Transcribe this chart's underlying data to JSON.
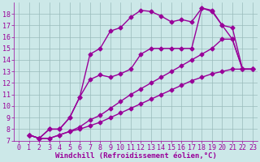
{
  "xlabel": "Windchill (Refroidissement éolien,°C)",
  "bg_color": "#cce8e8",
  "line_color": "#990099",
  "series": [
    {
      "x": [
        1,
        2,
        3,
        4,
        5,
        6,
        7,
        8,
        9,
        10,
        11,
        12,
        13,
        14,
        15,
        16,
        17,
        18,
        19,
        20,
        21,
        22,
        23
      ],
      "y": [
        7.5,
        7.2,
        7.2,
        7.5,
        7.8,
        8.0,
        8.3,
        8.6,
        9.0,
        9.4,
        9.8,
        10.2,
        10.6,
        11.0,
        11.4,
        11.8,
        12.2,
        12.5,
        12.8,
        13.0,
        13.2,
        13.2,
        13.2
      ]
    },
    {
      "x": [
        1,
        2,
        3,
        4,
        5,
        6,
        7,
        8,
        9,
        10,
        11,
        12,
        13,
        14,
        15,
        16,
        17,
        18,
        19,
        20,
        21,
        22,
        23
      ],
      "y": [
        7.5,
        7.2,
        7.2,
        7.5,
        7.8,
        8.2,
        8.8,
        9.2,
        9.8,
        10.4,
        11.0,
        11.5,
        12.0,
        12.5,
        13.0,
        13.5,
        14.0,
        14.5,
        15.0,
        15.8,
        15.8,
        13.2,
        13.2
      ]
    },
    {
      "x": [
        1,
        2,
        3,
        4,
        5,
        6,
        7,
        8,
        9,
        10,
        11,
        12,
        13,
        14,
        15,
        16,
        17,
        18,
        19,
        20,
        21,
        22,
        23
      ],
      "y": [
        7.5,
        7.2,
        8.0,
        8.0,
        9.0,
        10.8,
        12.3,
        12.7,
        12.5,
        12.8,
        13.2,
        14.5,
        15.0,
        15.0,
        15.0,
        15.0,
        15.0,
        18.5,
        18.3,
        17.0,
        15.8,
        13.2,
        13.2
      ]
    },
    {
      "x": [
        1,
        2,
        3,
        4,
        5,
        6,
        7,
        8,
        9,
        10,
        11,
        12,
        13,
        14,
        15,
        16,
        17,
        18,
        19,
        20,
        21,
        22,
        23
      ],
      "y": [
        7.5,
        7.2,
        8.0,
        8.0,
        9.0,
        10.8,
        14.5,
        15.0,
        16.5,
        16.8,
        17.7,
        18.3,
        18.2,
        17.8,
        17.3,
        17.5,
        17.3,
        18.5,
        18.2,
        17.0,
        16.8,
        13.2,
        13.2
      ]
    }
  ],
  "xlim": [
    -0.5,
    23.5
  ],
  "ylim": [
    7,
    19
  ],
  "yticks": [
    7,
    8,
    9,
    10,
    11,
    12,
    13,
    14,
    15,
    16,
    17,
    18
  ],
  "xticks": [
    0,
    1,
    2,
    3,
    4,
    5,
    6,
    7,
    8,
    9,
    10,
    11,
    12,
    13,
    14,
    15,
    16,
    17,
    18,
    19,
    20,
    21,
    22,
    23
  ],
  "grid_color": "#99bbbb",
  "marker": "D",
  "markersize": 2.5,
  "linewidth": 1.0,
  "label_fontsize": 6.5,
  "tick_fontsize": 6
}
